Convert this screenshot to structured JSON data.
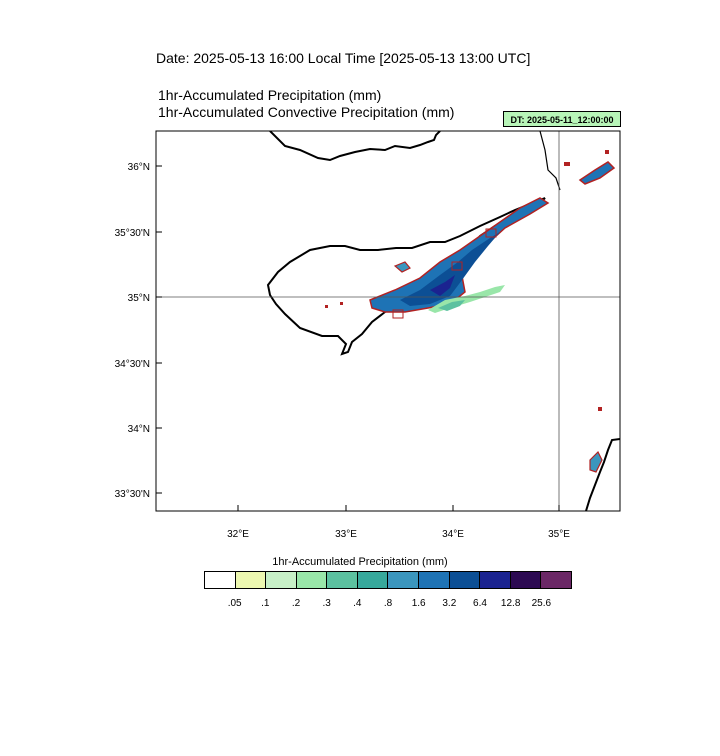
{
  "header": {
    "date_title": "Date: 2025-05-13  16:00 Local Time [2025-05-13  13:00 UTC]",
    "var_title_1": "1hr-Accumulated Precipitation   (mm)",
    "var_title_2": "1hr-Accumulated Convective Precipitation   (mm)",
    "dt_badge": "DT: 2025-05-11_12:00:00"
  },
  "map": {
    "lat_labels": [
      "36°N",
      "35°30'N",
      "35°N",
      "34°30'N",
      "34°N",
      "33°30'N"
    ],
    "lon_labels": [
      "32°E",
      "33°E",
      "34°E",
      "35°E"
    ],
    "reference_lines": [
      "35°N",
      "35°E"
    ],
    "colors": {
      "coastline": "#000000",
      "convective_contour": "#b22222",
      "grid_line": "#555555"
    }
  },
  "colorbar": {
    "title": "1hr-Accumulated Precipitation  (mm)",
    "labels": [
      ".05",
      ".1",
      ".2",
      ".3",
      ".4",
      ".8",
      "1.6",
      "3.2",
      "6.4",
      "12.8",
      "25.6"
    ],
    "colors": [
      "#ffffff",
      "#edf8b1",
      "#c7f0c7",
      "#99e6a9",
      "#5cc1a0",
      "#37a99c",
      "#3b96be",
      "#1e73b5",
      "#0c4f95",
      "#1b2390",
      "#2c0a52",
      "#6b2866"
    ]
  }
}
